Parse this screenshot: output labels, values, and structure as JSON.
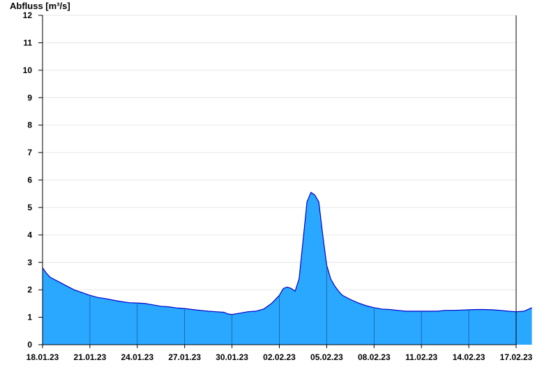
{
  "chart_data": {
    "type": "area",
    "ylabel": "Abfluss [m³/s]",
    "xlabel": "",
    "title": "",
    "ylim": [
      0,
      12
    ],
    "y_ticks": [
      0,
      1,
      2,
      3,
      4,
      5,
      6,
      7,
      8,
      9,
      10,
      11,
      12
    ],
    "x_range": [
      "2023-01-18",
      "2023-02-17"
    ],
    "x_ticks": [
      "18.01.23",
      "21.01.23",
      "24.01.23",
      "27.01.23",
      "30.01.23",
      "02.02.23",
      "05.02.23",
      "08.02.23",
      "11.02.23",
      "14.02.23",
      "17.02.23"
    ],
    "grid": "horizontal",
    "colors": {
      "fill": "#2aa8ff",
      "line": "#0000cc",
      "grid": "#e6e6e6",
      "axis": "#000000"
    },
    "series": [
      {
        "x": [
          "2023-01-18 00:00",
          "2023-01-18 06:00",
          "2023-01-18 12:00",
          "2023-01-19 00:00",
          "2023-01-19 12:00",
          "2023-01-20 00:00",
          "2023-01-20 12:00",
          "2023-01-21 00:00",
          "2023-01-21 12:00",
          "2023-01-22 00:00",
          "2023-01-22 12:00",
          "2023-01-23 00:00",
          "2023-01-23 12:00",
          "2023-01-24 00:00",
          "2023-01-24 12:00",
          "2023-01-25 00:00",
          "2023-01-25 12:00",
          "2023-01-26 00:00",
          "2023-01-26 12:00",
          "2023-01-27 00:00",
          "2023-01-27 12:00",
          "2023-01-28 00:00",
          "2023-01-28 12:00",
          "2023-01-29 00:00",
          "2023-01-29 12:00",
          "2023-01-29 18:00",
          "2023-01-30 00:00",
          "2023-01-30 12:00",
          "2023-01-31 00:00",
          "2023-01-31 12:00",
          "2023-02-01 00:00",
          "2023-02-01 12:00",
          "2023-02-02 00:00",
          "2023-02-02 06:00",
          "2023-02-02 12:00",
          "2023-02-02 18:00",
          "2023-02-03 00:00",
          "2023-02-03 06:00",
          "2023-02-03 12:00",
          "2023-02-03 18:00",
          "2023-02-04 00:00",
          "2023-02-04 06:00",
          "2023-02-04 12:00",
          "2023-02-04 18:00",
          "2023-02-05 00:00",
          "2023-02-05 06:00",
          "2023-02-05 12:00",
          "2023-02-05 18:00",
          "2023-02-06 00:00",
          "2023-02-06 12:00",
          "2023-02-07 00:00",
          "2023-02-07 12:00",
          "2023-02-08 00:00",
          "2023-02-08 12:00",
          "2023-02-09 00:00",
          "2023-02-09 12:00",
          "2023-02-10 00:00",
          "2023-02-10 12:00",
          "2023-02-11 00:00",
          "2023-02-11 12:00",
          "2023-02-12 00:00",
          "2023-02-12 12:00",
          "2023-02-13 00:00",
          "2023-02-13 12:00",
          "2023-02-14 00:00",
          "2023-02-14 12:00",
          "2023-02-15 00:00",
          "2023-02-15 12:00",
          "2023-02-16 00:00",
          "2023-02-16 12:00",
          "2023-02-17 00:00",
          "2023-02-17 12:00",
          "2023-02-17 23:59"
        ],
        "values": [
          2.8,
          2.6,
          2.45,
          2.3,
          2.15,
          2.0,
          1.9,
          1.8,
          1.72,
          1.68,
          1.62,
          1.57,
          1.53,
          1.52,
          1.5,
          1.45,
          1.4,
          1.38,
          1.34,
          1.32,
          1.28,
          1.25,
          1.22,
          1.2,
          1.18,
          1.12,
          1.1,
          1.15,
          1.2,
          1.22,
          1.3,
          1.5,
          1.8,
          2.05,
          2.1,
          2.05,
          1.95,
          2.4,
          3.8,
          5.2,
          5.55,
          5.45,
          5.2,
          4.0,
          2.9,
          2.4,
          2.15,
          1.95,
          1.8,
          1.65,
          1.52,
          1.42,
          1.35,
          1.3,
          1.28,
          1.25,
          1.22,
          1.22,
          1.22,
          1.22,
          1.22,
          1.25,
          1.25,
          1.26,
          1.27,
          1.28,
          1.28,
          1.27,
          1.25,
          1.22,
          1.2,
          1.22,
          1.35
        ]
      }
    ]
  }
}
